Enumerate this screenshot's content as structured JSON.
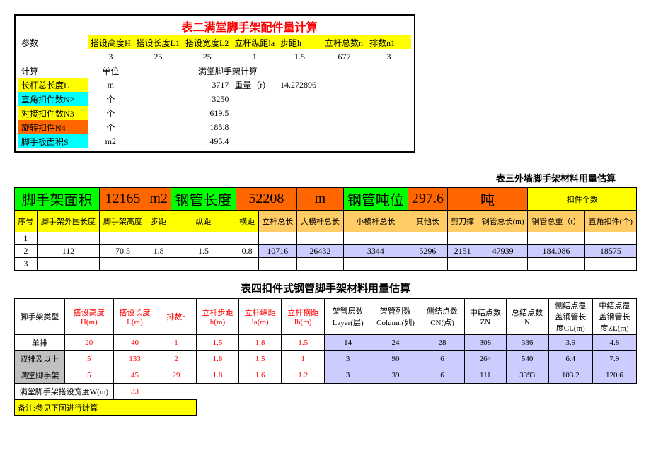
{
  "colors": {
    "yellow": "#ffff00",
    "cyan": "#00ffff",
    "orange": "#ff6600",
    "green": "#00ff00",
    "lightorange": "#ffcc66",
    "lavender": "#ccccff",
    "gray": "#c0c0c0",
    "darkblue": "#000080",
    "red": "#ff0000"
  },
  "t2": {
    "title": "表二满堂脚手架配件量计算",
    "param_label": "参数",
    "params_hdr": [
      "搭设高度H",
      "搭设长度L1",
      "搭设宽度L2",
      "立杆纵距la",
      "步距h",
      "立杆总数n",
      "排数n1"
    ],
    "params_val": [
      "3",
      "25",
      "25",
      "1",
      "1.5",
      "677",
      "3"
    ],
    "calc_label": "计算",
    "unit_label": "单位",
    "calc_title": "满堂脚手架计算",
    "rows": [
      {
        "name": "长杆总长度L",
        "bg": "#ffff00",
        "unit": "m",
        "v1": "3717",
        "extra_lbl": "重量（t）",
        "extra_v": "14.272896"
      },
      {
        "name": "直角扣件数N2",
        "bg": "#00ffff",
        "unit": "个",
        "v1": "3250",
        "extra_lbl": "",
        "extra_v": ""
      },
      {
        "name": "对接扣件数N3",
        "bg": "#ffff00",
        "unit": "个",
        "v1": "619.5",
        "extra_lbl": "",
        "extra_v": ""
      },
      {
        "name": "旋转扣件N4",
        "bg": "#ff6600",
        "unit": "个",
        "v1": "185.8",
        "extra_lbl": "",
        "extra_v": ""
      },
      {
        "name": "脚手板面积S",
        "bg": "#00ffff",
        "unit": "m2",
        "v1": "495.4",
        "extra_lbl": "",
        "extra_v": ""
      }
    ]
  },
  "t3": {
    "title": "表三外墙脚手架材料用量估算",
    "big": [
      {
        "t": "脚手架面积",
        "bg": "#00ff00"
      },
      {
        "t": "12165",
        "bg": "#ff6600"
      },
      {
        "t": "m2",
        "bg": "#ff6600"
      },
      {
        "t": "钢管长度",
        "bg": "#00ff00"
      },
      {
        "t": "52208",
        "bg": "#ff6600"
      },
      {
        "t": "m",
        "bg": "#ff6600"
      },
      {
        "t": "钢管吨位",
        "bg": "#00ff00"
      },
      {
        "t": "297.6",
        "bg": "#ff6600"
      },
      {
        "t": "吨",
        "bg": "#ff6600"
      },
      {
        "t": "扣件个数",
        "bg": "#ffff00",
        "fs": "11px"
      }
    ],
    "hdr": [
      {
        "t": "序号",
        "bg": "#ffff00",
        "cs": 1
      },
      {
        "t": "脚手架外围长度",
        "bg": "#ffff00",
        "cs": 1
      },
      {
        "t": "脚手架高度",
        "bg": "#ffff00",
        "cs": 1
      },
      {
        "t": "步距",
        "bg": "#ffff00",
        "cs": 1
      },
      {
        "t": "纵距",
        "bg": "#ffff00",
        "cs": 1
      },
      {
        "t": "横距",
        "bg": "#ffff00",
        "cs": 1
      },
      {
        "t": "立杆总长",
        "bg": "#ffcc66",
        "cs": 1
      },
      {
        "t": "大横杆总长",
        "bg": "#ffcc66",
        "cs": 1
      },
      {
        "t": "小横杆总长",
        "bg": "#ffcc66",
        "cs": 1
      },
      {
        "t": "其他长",
        "bg": "#ffcc66",
        "cs": 1
      },
      {
        "t": "剪刀撑",
        "bg": "#ffcc66",
        "cs": 1
      },
      {
        "t": "钢管总长(m)",
        "bg": "#ffcc66",
        "cs": 1
      },
      {
        "t": "钢管总重（t）",
        "bg": "#ffcc66",
        "cs": 1
      },
      {
        "t": "直角扣件(个)",
        "bg": "#ffcc66",
        "cs": 1
      }
    ],
    "rows": [
      [
        "1",
        "",
        "",
        "",
        "",
        "",
        "",
        "",
        "",
        "",
        "",
        "",
        "",
        ""
      ],
      [
        "2",
        "112",
        "70.5",
        "1.8",
        "1.5",
        "0.8",
        "10716",
        "26432",
        "3344",
        "5296",
        "2151",
        "47939",
        "184.086",
        "18575"
      ],
      [
        "3",
        "",
        "",
        "",
        "",
        "",
        "",
        "",
        "",
        "",
        "",
        "",
        "",
        ""
      ]
    ],
    "row2_blue_from": 6
  },
  "t4": {
    "title": "表四扣件式钢管脚手架材料用量估算",
    "hdr": [
      {
        "t": "脚手架类型",
        "red": false
      },
      {
        "t": "搭设高度H(m)",
        "red": true
      },
      {
        "t": "搭设长度L(m)",
        "red": true
      },
      {
        "t": "排数n",
        "red": true
      },
      {
        "t": "立杆步距h(m)",
        "red": true
      },
      {
        "t": "立杆纵距la(m)",
        "red": true
      },
      {
        "t": "立杆横距lb(m)",
        "red": true
      },
      {
        "t": "架管层数Layer(层)",
        "red": false
      },
      {
        "t": "架管列数Column(列)",
        "red": false
      },
      {
        "t": "侧结点数CN(点)",
        "red": false
      },
      {
        "t": "中结点数ZN",
        "red": false
      },
      {
        "t": "总结点数N",
        "red": false
      },
      {
        "t": "侧结点覆盖钢管长度CL(m)",
        "red": false
      },
      {
        "t": "中结点覆盖钢管长度ZL(m)",
        "red": false
      }
    ],
    "rows": [
      {
        "name": "单排",
        "bg": "",
        "v": [
          "20",
          "40",
          "1",
          "1.5",
          "1.8",
          "1.5",
          "14",
          "24",
          "28",
          "308",
          "336",
          "3.9",
          "4.8"
        ]
      },
      {
        "name": "双排及以上",
        "bg": "#c0c0c0",
        "v": [
          "5",
          "133",
          "2",
          "1.8",
          "1.5",
          "1",
          "3",
          "90",
          "6",
          "264",
          "540",
          "6.4",
          "7.9"
        ]
      },
      {
        "name": "满堂脚手架",
        "bg": "#c0c0c0",
        "v": [
          "5",
          "45",
          "29",
          "1.8",
          "1.6",
          "1.2",
          "3",
          "39",
          "6",
          "111",
          "3393",
          "103.2",
          "120.6"
        ]
      }
    ],
    "row_blue_from": 7,
    "footer_label": "满堂脚手架搭设宽度W(m)",
    "footer_val": "33",
    "note": "备注:参见下图进行计算"
  }
}
